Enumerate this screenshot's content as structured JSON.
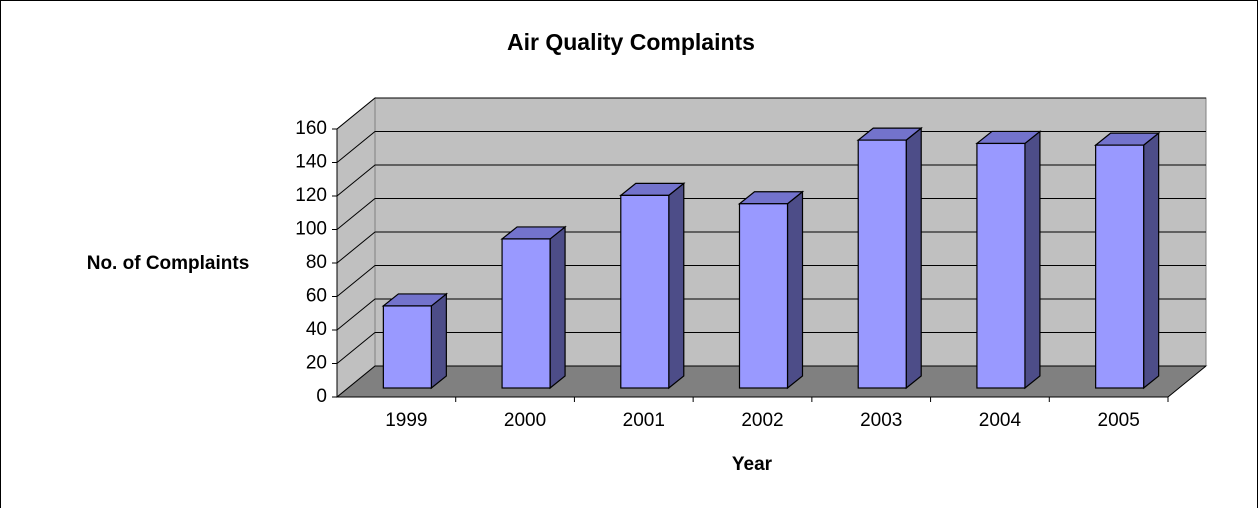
{
  "chart_data": {
    "type": "bar3d",
    "title": "Air Quality Complaints",
    "x_label": "Year",
    "y_label": "No. of Complaints",
    "categories": [
      "1999",
      "2000",
      "2001",
      "2002",
      "2003",
      "2004",
      "2005"
    ],
    "values": [
      49,
      89,
      115,
      110,
      148,
      146,
      145
    ],
    "color": "#9999ff",
    "ylim": [
      0,
      160
    ],
    "yticks": [
      0,
      20,
      40,
      60,
      80,
      100,
      120,
      140,
      160
    ],
    "grid": true
  }
}
